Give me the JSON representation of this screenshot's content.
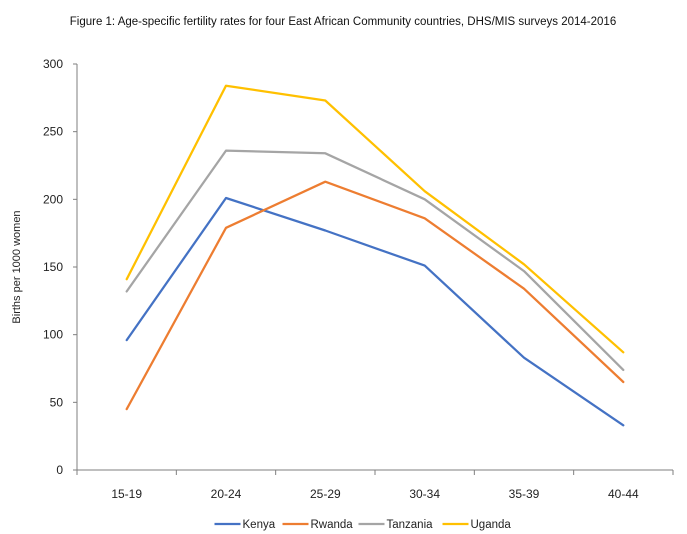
{
  "chart_data": {
    "type": "line",
    "title": "Figure 1: Age-specific fertility rates for four East African Community countries, DHS/MIS surveys 2014-2016",
    "xlabel": "",
    "ylabel": "Births per 1000 women",
    "categories": [
      "15-19",
      "20-24",
      "25-29",
      "30-34",
      "35-39",
      "40-44"
    ],
    "ylim": [
      0,
      300
    ],
    "yticks": [
      0,
      50,
      100,
      150,
      200,
      250,
      300
    ],
    "grid": false,
    "legend_position": "bottom",
    "series": [
      {
        "name": "Kenya",
        "color": "#4472C4",
        "values": [
          96,
          201,
          177,
          151,
          83,
          33
        ]
      },
      {
        "name": "Rwanda",
        "color": "#ED7D31",
        "values": [
          45,
          179,
          213,
          186,
          134,
          65
        ]
      },
      {
        "name": "Tanzania",
        "color": "#A5A5A5",
        "values": [
          132,
          236,
          234,
          200,
          147,
          74
        ]
      },
      {
        "name": "Uganda",
        "color": "#FFC000",
        "values": [
          141,
          284,
          273,
          206,
          152,
          87
        ]
      }
    ]
  }
}
